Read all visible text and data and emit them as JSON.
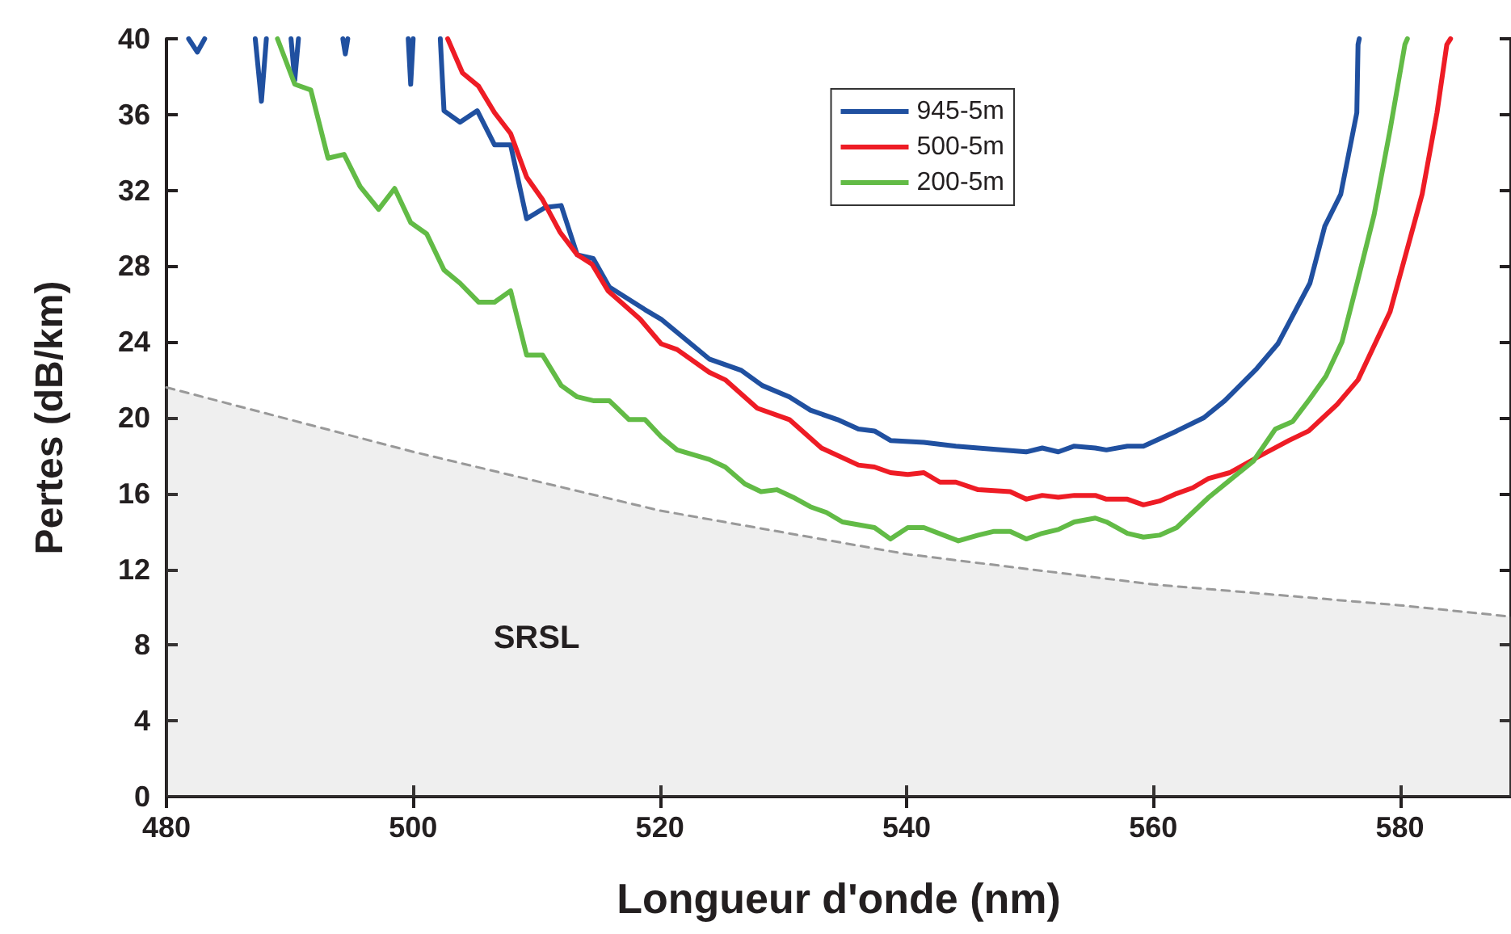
{
  "chart_data": {
    "type": "line",
    "xlabel": "Longueur d'onde (nm)",
    "ylabel": "Pertes (dB/km)",
    "xlim": [
      480,
      589
    ],
    "xticks": [
      480,
      500,
      520,
      540,
      560,
      580
    ],
    "ylim": [
      0,
      40
    ],
    "yticks": [
      0,
      4,
      8,
      12,
      16,
      20,
      24,
      28,
      32,
      36,
      40
    ],
    "grid": false,
    "legend": "top",
    "marker": "none",
    "line_style": "solid",
    "annotations": [
      "SRSL"
    ],
    "series": [
      {
        "type": "area",
        "color": "#999999",
        "line_style": "dashed",
        "x": [
          480,
          500,
          520,
          540,
          560,
          580,
          589
        ],
        "values": [
          21.6,
          18.2,
          15.1,
          12.8,
          11.2,
          10.1,
          9.5
        ]
      },
      {
        "name": "945-5m",
        "color": "#2050a0",
        "x": [
          481.8,
          482.5,
          483.1,
          484,
          487.2,
          487.7,
          488.1,
          489,
          490.1,
          490.4,
          490.7,
          492,
          494.3,
          494.5,
          494.7,
          496,
          499.6,
          499.8,
          500.0,
          501,
          502.2,
          502.5,
          503.8,
          505.2,
          506.6,
          507.9,
          509.2,
          510.7,
          512.0,
          513.3,
          514.6,
          515.9,
          518.8,
          520.1,
          524.0,
          526.6,
          528.3,
          530.5,
          532.2,
          534.4,
          536.1,
          537.4,
          538.7,
          541.4,
          544.0,
          545.8,
          549.7,
          551.0,
          552.3,
          553.6,
          555.3,
          556.2,
          557.9,
          559.2,
          561.9,
          564.1,
          565.8,
          568.4,
          570.1,
          572.7,
          573.9,
          575.2,
          576.5,
          576.6,
          576.7
        ],
        "values": [
          40,
          39.3,
          40,
          null,
          40,
          36.7,
          40,
          null,
          40,
          37.8,
          40,
          null,
          40,
          39.2,
          40,
          null,
          40,
          37.6,
          40,
          null,
          40,
          36.2,
          35.6,
          36.2,
          34.4,
          34.4,
          30.5,
          31.1,
          31.2,
          28.6,
          28.4,
          26.9,
          25.7,
          25.2,
          23.1,
          22.5,
          21.7,
          21.1,
          20.4,
          19.9,
          19.4,
          19.3,
          18.8,
          18.7,
          18.5,
          18.4,
          18.2,
          18.4,
          18.2,
          18.5,
          18.4,
          18.3,
          18.5,
          18.5,
          19.3,
          20.0,
          20.9,
          22.6,
          23.9,
          27.1,
          30.1,
          31.8,
          36.1,
          39.7,
          40
        ]
      },
      {
        "name": "500-5m",
        "color": "#ee1c25",
        "x": [
          502.8,
          504.0,
          505.3,
          506.6,
          507.9,
          509.2,
          510.5,
          511.9,
          513.3,
          514.5,
          515.8,
          518.4,
          520.1,
          521.4,
          524.0,
          525.3,
          527.9,
          530.5,
          533.1,
          536.1,
          537.4,
          538.7,
          540.1,
          541.4,
          542.7,
          544.0,
          545.8,
          548.4,
          549.7,
          551.0,
          552.3,
          553.6,
          555.3,
          556.2,
          557.9,
          559.2,
          560.5,
          561.9,
          563.2,
          564.5,
          566.2,
          568.4,
          571.0,
          572.6,
          574.9,
          576.6,
          579.2,
          581.8,
          583.0,
          583.8,
          584.1
        ],
        "values": [
          40,
          38.2,
          37.5,
          36.1,
          35.0,
          32.7,
          31.5,
          29.8,
          28.6,
          28.1,
          26.7,
          25.2,
          23.9,
          23.6,
          22.4,
          22.0,
          20.5,
          19.9,
          18.4,
          17.5,
          17.4,
          17.1,
          17.0,
          17.1,
          16.6,
          16.6,
          16.2,
          16.1,
          15.7,
          15.9,
          15.8,
          15.9,
          15.9,
          15.7,
          15.7,
          15.4,
          15.6,
          16.0,
          16.3,
          16.8,
          17.1,
          17.9,
          18.8,
          19.3,
          20.7,
          22.0,
          25.6,
          31.8,
          36.1,
          39.7,
          40
        ]
      },
      {
        "name": "200-5m",
        "color": "#62bb46",
        "x": [
          489.0,
          490.4,
          491.7,
          493.1,
          494.4,
          495.7,
          497.2,
          498.5,
          499.8,
          501.1,
          502.5,
          503.8,
          505.3,
          506.6,
          507.9,
          509.2,
          510.5,
          512.0,
          513.3,
          514.6,
          515.9,
          517.5,
          518.8,
          520.1,
          521.4,
          524.0,
          525.3,
          526.9,
          528.2,
          529.5,
          530.8,
          532.2,
          533.5,
          534.8,
          537.4,
          538.7,
          540.1,
          541.4,
          544.2,
          545.8,
          547.1,
          548.4,
          549.7,
          551.0,
          552.3,
          553.6,
          555.3,
          556.2,
          557.9,
          559.2,
          560.5,
          561.9,
          563.2,
          564.5,
          566.2,
          568.1,
          569.9,
          571.3,
          572.7,
          574.0,
          575.3,
          576.6,
          577.9,
          579.2,
          580.4,
          580.6
        ],
        "values": [
          40,
          37.6,
          37.3,
          33.7,
          33.9,
          32.2,
          31.0,
          32.1,
          30.3,
          29.7,
          27.8,
          27.1,
          26.1,
          26.1,
          26.7,
          23.3,
          23.3,
          21.7,
          21.1,
          20.9,
          20.9,
          19.9,
          19.9,
          19.0,
          18.3,
          17.8,
          17.4,
          16.5,
          16.1,
          16.2,
          15.8,
          15.3,
          15.0,
          14.5,
          14.2,
          13.6,
          14.2,
          14.2,
          13.5,
          13.8,
          14.0,
          14.0,
          13.6,
          13.9,
          14.1,
          14.5,
          14.7,
          14.5,
          13.9,
          13.7,
          13.8,
          14.2,
          15.0,
          15.8,
          16.7,
          17.7,
          19.4,
          19.8,
          21.0,
          22.2,
          24.0,
          27.3,
          30.7,
          35.2,
          39.7,
          40
        ]
      }
    ]
  }
}
